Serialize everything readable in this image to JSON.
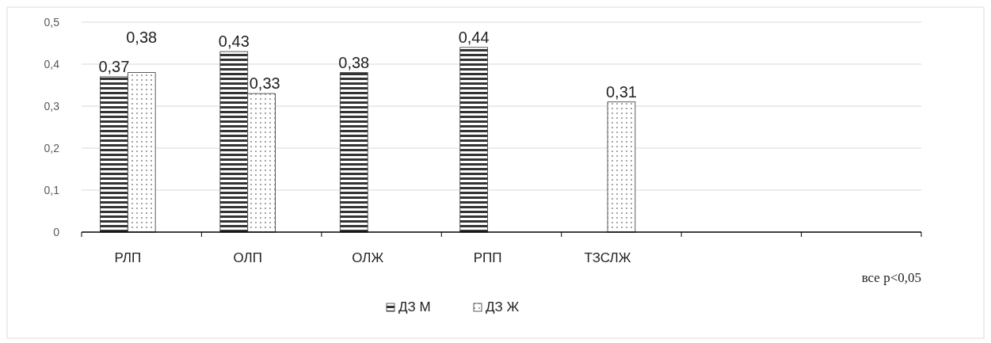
{
  "chart_data": {
    "type": "bar",
    "categories": [
      "РЛП",
      "ОЛП",
      "ОЛЖ",
      "РПП",
      "ТЗСЛЖ",
      null,
      null
    ],
    "series": [
      {
        "name": "ДЗ М",
        "color": "#333333",
        "values": [
          0.37,
          0.43,
          0.38,
          0.44,
          null,
          null,
          null
        ],
        "value_labels": [
          "0,37",
          "0,43",
          "0,38",
          "0,44",
          null,
          null,
          null
        ]
      },
      {
        "name": "ДЗ Ж",
        "color": "#333333",
        "values": [
          0.38,
          0.33,
          null,
          null,
          0.31,
          null,
          null
        ],
        "value_labels": [
          "0,38",
          "0,33",
          null,
          null,
          "0,31",
          null,
          null
        ]
      }
    ],
    "ylim": [
      0,
      0.5
    ],
    "yticks": [
      0,
      {
        "value": 0.1,
        "label": "0,1"
      },
      {
        "value": 0.2,
        "label": "0,2"
      },
      {
        "value": 0.3,
        "label": "0,3"
      },
      {
        "value": 0.4,
        "label": "0,4"
      },
      {
        "value": 0.5,
        "label": "0,5"
      }
    ],
    "grid": "y",
    "legend": "bottom",
    "annotations": [
      "все p<0,05"
    ]
  }
}
